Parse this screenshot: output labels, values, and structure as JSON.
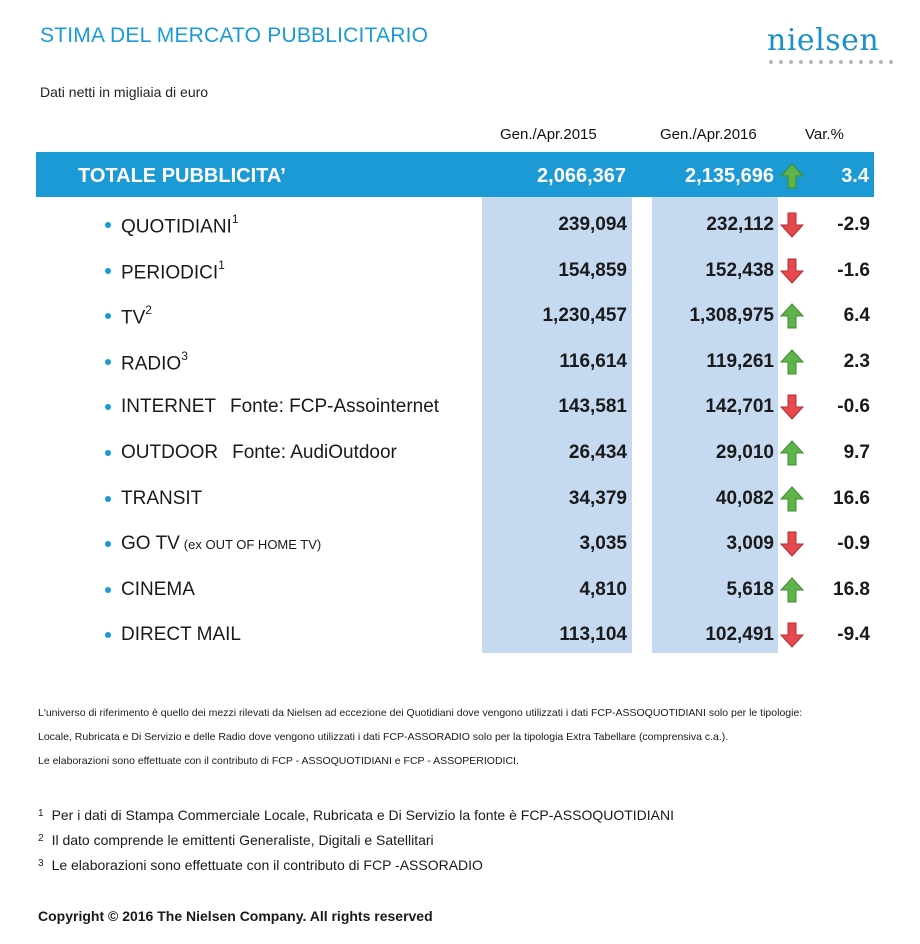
{
  "header": {
    "title": "STIMA DEL MERCATO PUBBLICITARIO",
    "logo_text": "nielsen",
    "subtitle": "Dati netti in migliaia di euro"
  },
  "columns": {
    "period1": "Gen./Apr.2015",
    "period2": "Gen./Apr.2016",
    "variation": "Var.%"
  },
  "total": {
    "label": "TOTALE PUBBLICITA’",
    "v2015": "2,066,367",
    "v2016": "2,135,696",
    "trend": "up-arrow-icon",
    "var": "3.4"
  },
  "rows": [
    {
      "label": "QUOTIDIANI",
      "sup": "1",
      "source": "",
      "note": "",
      "v2015": "239,094",
      "v2016": "232,112",
      "trend": "down",
      "var": "-2.9"
    },
    {
      "label": "PERIODICI",
      "sup": "1",
      "source": "",
      "note": "",
      "v2015": "154,859",
      "v2016": "152,438",
      "trend": "down",
      "var": "-1.6"
    },
    {
      "label": "TV",
      "sup": "2",
      "source": "",
      "note": "",
      "v2015": "1,230,457",
      "v2016": "1,308,975",
      "trend": "up",
      "var": "6.4"
    },
    {
      "label": "RADIO",
      "sup": "3",
      "source": "",
      "note": "",
      "v2015": "116,614",
      "v2016": "119,261",
      "trend": "up",
      "var": "2.3"
    },
    {
      "label": "INTERNET",
      "sup": "",
      "source": "Fonte: FCP-Assointernet",
      "note": "",
      "v2015": "143,581",
      "v2016": "142,701",
      "trend": "down",
      "var": "-0.6"
    },
    {
      "label": "OUTDOOR",
      "sup": "",
      "source": "Fonte: AudiOutdoor",
      "note": "",
      "v2015": "26,434",
      "v2016": "29,010",
      "trend": "up",
      "var": "9.7"
    },
    {
      "label": "TRANSIT",
      "sup": "",
      "source": "",
      "note": "",
      "v2015": "34,379",
      "v2016": "40,082",
      "trend": "up",
      "var": "16.6"
    },
    {
      "label": "GO TV",
      "sup": "",
      "source": "",
      "note": "(ex OUT OF HOME TV)",
      "v2015": "3,035",
      "v2016": "3,009",
      "trend": "down",
      "var": "-0.9"
    },
    {
      "label": "CINEMA",
      "sup": "",
      "source": "",
      "note": "",
      "v2015": "4,810",
      "v2016": "5,618",
      "trend": "up",
      "var": "16.8"
    },
    {
      "label": "DIRECT MAIL",
      "sup": "",
      "source": "",
      "note": "",
      "v2015": "113,104",
      "v2016": "102,491",
      "trend": "down",
      "var": "-9.4"
    }
  ],
  "notes": [
    "L'universo di riferimento è quello dei mezzi rilevati da Nielsen ad eccezione dei Quotidiani dove vengono utilizzati i dati FCP-ASSOQUOTIDIANI solo per le tipologie:",
    "Locale, Rubricata e Di Servizio e delle Radio dove vengono utilizzati i dati FCP-ASSORADIO solo per la tipologia Extra Tabellare (comprensiva c.a.).",
    "Le elaborazioni sono effettuate con il contributo di FCP - ASSOQUOTIDIANI e FCP - ASSOPERIODICI."
  ],
  "footnotes": [
    {
      "num": "1",
      "text": "Per i dati di Stampa Commerciale Locale, Rubricata e Di Servizio la fonte è  FCP-ASSOQUOTIDIANI"
    },
    {
      "num": "2",
      "text": "Il dato comprende le emittenti Generaliste, Digitali e Satellitari"
    },
    {
      "num": "3",
      "text": "Le elaborazioni sono effettuate con il contributo di FCP -ASSORADIO"
    }
  ],
  "copyright": "Copyright © 2016 The Nielsen Company. All rights reserved",
  "colors": {
    "accent": "#1b9ad6",
    "column_fill": "#c5d9f1",
    "up_arrow": "#5fb34b",
    "down_arrow": "#e5484d"
  }
}
